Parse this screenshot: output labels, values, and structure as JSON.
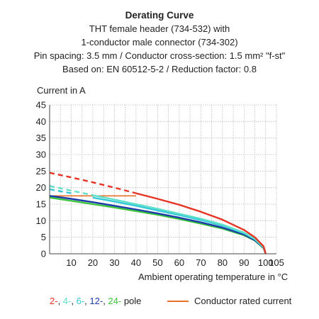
{
  "header": {
    "title": "Derating Curve",
    "lines": [
      "THT female header (734-532) with",
      "1-conductor male connector (734-302)",
      "Pin spacing: 3.5 mm / Conductor cross-section: 1.5 mm² \"f-st\"",
      "Based on: EN 60512-5-2 / Reduction factor: 0.8"
    ]
  },
  "legend": {
    "pole_items": [
      {
        "text": "2-",
        "color": "#e63323"
      },
      {
        "text": ", ",
        "color": "#222222"
      },
      {
        "text": "4-",
        "color": "#5fe0c8"
      },
      {
        "text": ", ",
        "color": "#222222"
      },
      {
        "text": "6-",
        "color": "#35c9d8"
      },
      {
        "text": ", ",
        "color": "#222222"
      },
      {
        "text": "12-",
        "color": "#1a3aa8"
      },
      {
        "text": ", ",
        "color": "#222222"
      },
      {
        "text": "24-",
        "color": "#3cc43c"
      },
      {
        "text": " pole",
        "color": "#222222"
      }
    ],
    "rated_label": "Conductor rated current",
    "rated_color": "#e8722a"
  },
  "chart_data": {
    "type": "line",
    "ylabel": "Current in A",
    "xlabel": "Ambient operating temperature in °C",
    "xlim": [
      0,
      105
    ],
    "ylim": [
      0,
      45
    ],
    "x_ticks": [
      10,
      20,
      30,
      40,
      50,
      60,
      70,
      80,
      90,
      100,
      105
    ],
    "y_ticks": [
      0,
      5,
      10,
      15,
      20,
      25,
      30,
      35,
      40,
      45
    ],
    "grid": true,
    "series": [
      {
        "name": "2-",
        "color": "#e63323",
        "dashed_x": [
          0,
          40
        ],
        "x": [
          0,
          10,
          20,
          30,
          40,
          50,
          60,
          70,
          80,
          90,
          95,
          99,
          100
        ],
        "y": [
          24.5,
          23.1,
          21.6,
          20.0,
          18.3,
          16.6,
          14.8,
          12.7,
          10.3,
          7.2,
          5.0,
          2.3,
          0
        ]
      },
      {
        "name": "4-",
        "color": "#5fe0c8",
        "dashed_x": [
          0,
          20
        ],
        "x": [
          0,
          10,
          20,
          30,
          40,
          50,
          60,
          70,
          80,
          90,
          95,
          99,
          100
        ],
        "y": [
          20.5,
          19.1,
          17.7,
          16.4,
          15.0,
          13.6,
          12.1,
          10.6,
          8.8,
          6.4,
          4.5,
          2.0,
          0
        ]
      },
      {
        "name": "6-",
        "color": "#35c9d8",
        "dashed_x": [
          0,
          15
        ],
        "x": [
          0,
          10,
          20,
          30,
          40,
          50,
          60,
          70,
          80,
          90,
          95,
          99,
          100
        ],
        "y": [
          19.5,
          18.3,
          17.0,
          15.8,
          14.5,
          13.1,
          11.7,
          10.2,
          8.5,
          6.2,
          4.4,
          1.9,
          0
        ]
      },
      {
        "name": "12-",
        "color": "#1a3aa8",
        "dashed_x": null,
        "x": [
          0,
          10,
          20,
          30,
          40,
          50,
          60,
          70,
          80,
          90,
          95,
          99,
          100
        ],
        "y": [
          17.5,
          16.6,
          15.6,
          14.5,
          13.4,
          12.2,
          10.9,
          9.5,
          7.9,
          5.8,
          4.1,
          1.8,
          0
        ]
      },
      {
        "name": "24-",
        "color": "#3cc43c",
        "dashed_x": null,
        "x": [
          0,
          10,
          20,
          30,
          40,
          50,
          60,
          70,
          80,
          90,
          95,
          99,
          100
        ],
        "y": [
          17.0,
          16.0,
          15.0,
          14.0,
          12.9,
          11.8,
          10.5,
          9.1,
          7.6,
          5.6,
          4.0,
          1.7,
          0
        ]
      }
    ],
    "rated_current": {
      "name": "Conductor rated current",
      "color": "#e8722a",
      "x": [
        0,
        40
      ],
      "y": [
        17.5,
        17.5
      ]
    }
  }
}
